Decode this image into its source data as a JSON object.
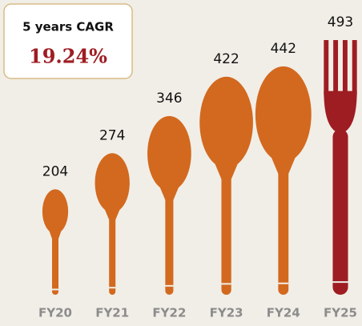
{
  "chart_data": {
    "type": "pictorial-bar",
    "categories": [
      "FY20",
      "FY21",
      "FY22",
      "FY23",
      "FY24",
      "FY25"
    ],
    "values": [
      204,
      274,
      346,
      422,
      442,
      493
    ],
    "colors": [
      "#d2691f",
      "#d2691f",
      "#d2691f",
      "#d2691f",
      "#d2691f",
      "#9e1d22"
    ],
    "markers": [
      "spoon",
      "spoon",
      "spoon",
      "spoon",
      "spoon",
      "fork"
    ],
    "annotation": {
      "label": "5 years CAGR",
      "value": "19.24%"
    }
  }
}
